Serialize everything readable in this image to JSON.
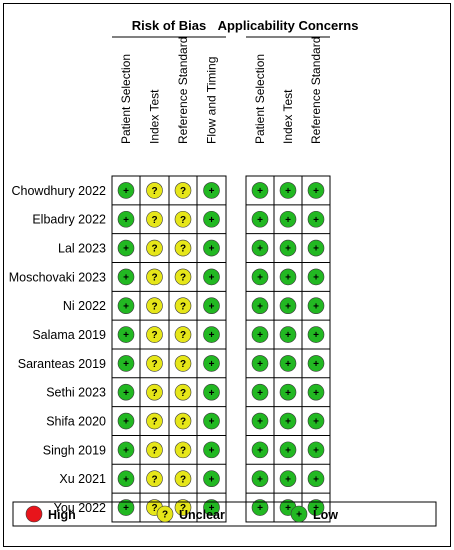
{
  "chart_data": {
    "type": "table",
    "groups": [
      {
        "title": "Risk of Bias",
        "domains": [
          "Patient Selection",
          "Index Test",
          "Reference Standard",
          "Flow and Timing"
        ]
      },
      {
        "title": "Applicability Concerns",
        "domains": [
          "Patient Selection",
          "Index Test",
          "Reference Standard"
        ]
      }
    ],
    "studies": [
      {
        "name": "Chowdhury 2022",
        "risk_of_bias": [
          "low",
          "unclear",
          "unclear",
          "low"
        ],
        "applicability": [
          "low",
          "low",
          "low"
        ]
      },
      {
        "name": "Elbadry 2022",
        "risk_of_bias": [
          "low",
          "unclear",
          "unclear",
          "low"
        ],
        "applicability": [
          "low",
          "low",
          "low"
        ]
      },
      {
        "name": "Lal 2023",
        "risk_of_bias": [
          "low",
          "unclear",
          "unclear",
          "low"
        ],
        "applicability": [
          "low",
          "low",
          "low"
        ]
      },
      {
        "name": "Moschovaki 2023",
        "risk_of_bias": [
          "low",
          "unclear",
          "unclear",
          "low"
        ],
        "applicability": [
          "low",
          "low",
          "low"
        ]
      },
      {
        "name": "Ni 2022",
        "risk_of_bias": [
          "low",
          "unclear",
          "unclear",
          "low"
        ],
        "applicability": [
          "low",
          "low",
          "low"
        ]
      },
      {
        "name": "Salama 2019",
        "risk_of_bias": [
          "low",
          "unclear",
          "unclear",
          "low"
        ],
        "applicability": [
          "low",
          "low",
          "low"
        ]
      },
      {
        "name": "Saranteas 2019",
        "risk_of_bias": [
          "low",
          "unclear",
          "unclear",
          "low"
        ],
        "applicability": [
          "low",
          "low",
          "low"
        ]
      },
      {
        "name": "Sethi 2023",
        "risk_of_bias": [
          "low",
          "unclear",
          "unclear",
          "low"
        ],
        "applicability": [
          "low",
          "low",
          "low"
        ]
      },
      {
        "name": "Shifa 2020",
        "risk_of_bias": [
          "low",
          "unclear",
          "unclear",
          "low"
        ],
        "applicability": [
          "low",
          "low",
          "low"
        ]
      },
      {
        "name": "Singh 2019",
        "risk_of_bias": [
          "low",
          "unclear",
          "unclear",
          "low"
        ],
        "applicability": [
          "low",
          "low",
          "low"
        ]
      },
      {
        "name": "Xu 2021",
        "risk_of_bias": [
          "low",
          "unclear",
          "unclear",
          "low"
        ],
        "applicability": [
          "low",
          "low",
          "low"
        ]
      },
      {
        "name": "You 2022",
        "risk_of_bias": [
          "low",
          "unclear",
          "unclear",
          "low"
        ],
        "applicability": [
          "low",
          "low",
          "low"
        ]
      }
    ],
    "legend": [
      {
        "key": "high",
        "label": "High",
        "symbol": "",
        "color": "#e8141b"
      },
      {
        "key": "unclear",
        "label": "Unclear",
        "symbol": "?",
        "color": "#e6e619"
      },
      {
        "key": "low",
        "label": "Low",
        "symbol": "+",
        "color": "#22b822"
      }
    ],
    "legend_position": "bottom"
  }
}
